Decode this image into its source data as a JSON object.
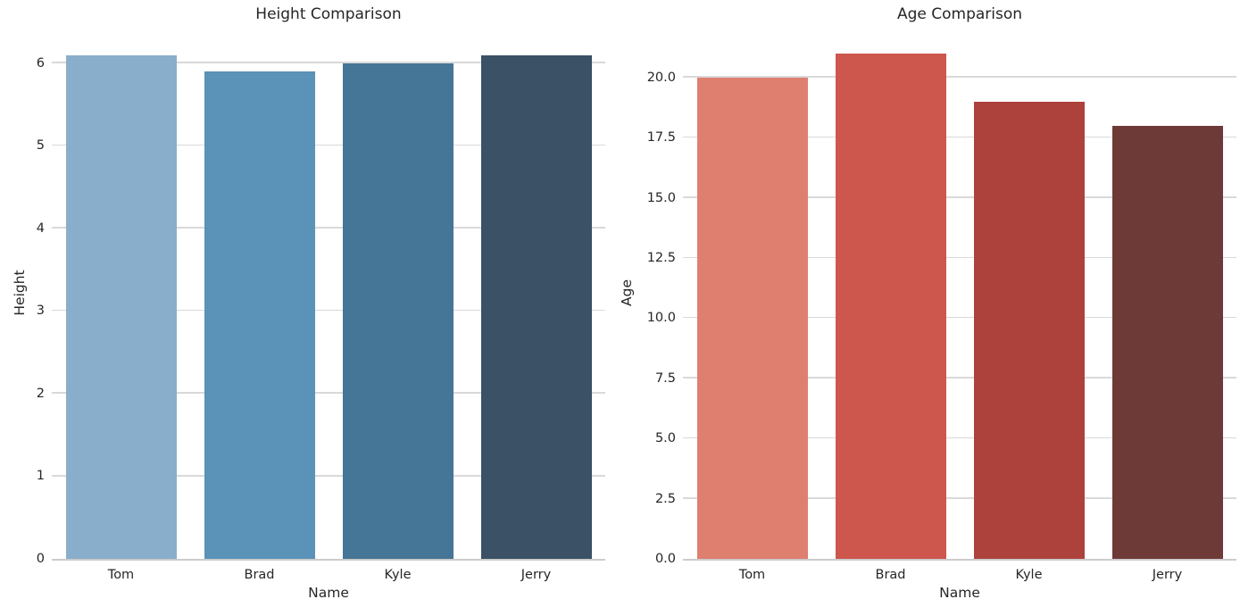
{
  "figure": {
    "background": "#ffffff",
    "text_color": "#262626",
    "grid_color": "#d9d9d9",
    "baseline_color": "#cccccc"
  },
  "chart_data": [
    {
      "type": "bar",
      "title": "Height Comparison",
      "xlabel": "Name",
      "ylabel": "Height",
      "categories": [
        "Tom",
        "Brad",
        "Kyle",
        "Jerry"
      ],
      "values": [
        6.1,
        5.9,
        6.0,
        6.1
      ],
      "bar_colors": [
        "#88aecb",
        "#5b92b8",
        "#457597",
        "#3a5166"
      ],
      "ytick_values": [
        0,
        1,
        2,
        3,
        4,
        5,
        6
      ],
      "ytick_labels": [
        "0",
        "1",
        "2",
        "3",
        "4",
        "5",
        "6"
      ],
      "ylim": [
        0,
        6.41
      ],
      "grid": "horizontal",
      "legend": "none"
    },
    {
      "type": "bar",
      "title": "Age Comparison",
      "xlabel": "Name",
      "ylabel": "Age",
      "categories": [
        "Tom",
        "Brad",
        "Kyle",
        "Jerry"
      ],
      "values": [
        20,
        21,
        19,
        18
      ],
      "bar_colors": [
        "#df7f70",
        "#cd564d",
        "#ad423d",
        "#6e3a38"
      ],
      "ytick_values": [
        0,
        2.5,
        5,
        7.5,
        10,
        12.5,
        15,
        17.5,
        20
      ],
      "ytick_labels": [
        "0.0",
        "2.5",
        "5.0",
        "7.5",
        "10.0",
        "12.5",
        "15.0",
        "17.5",
        "20.0"
      ],
      "ylim": [
        0,
        22
      ],
      "grid": "horizontal",
      "legend": "none"
    }
  ]
}
